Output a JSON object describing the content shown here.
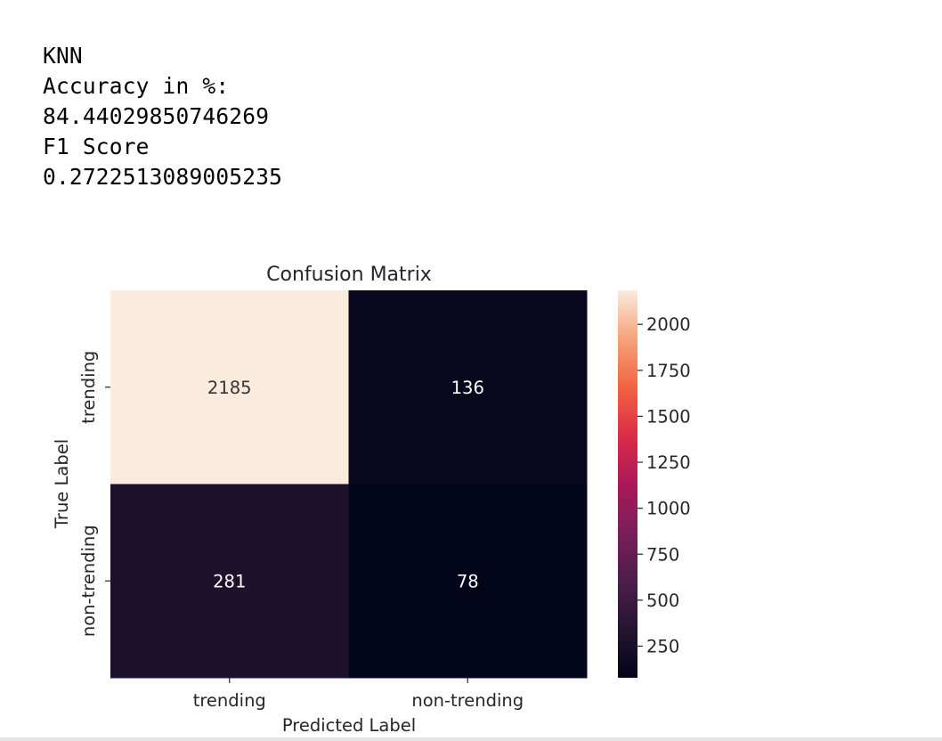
{
  "output_lines": [
    "KNN",
    "Accuracy in %:",
    "84.44029850746269",
    "F1 Score",
    "0.2722513089005235"
  ],
  "chart_data": {
    "type": "heatmap",
    "title": "Confusion Matrix",
    "xlabel": "Predicted Label",
    "ylabel": "True Label",
    "x_categories": [
      "trending",
      "non-trending"
    ],
    "y_categories": [
      "trending",
      "non-trending"
    ],
    "values": [
      [
        2185,
        136
      ],
      [
        281,
        78
      ]
    ],
    "colorbar": {
      "min": 78,
      "max": 2185,
      "ticks": [
        250,
        500,
        750,
        1000,
        1250,
        1500,
        1750,
        2000
      ]
    },
    "colormap": "rocket",
    "annotation_color": "#ffffff",
    "annotation_color_dark": "#333333"
  }
}
